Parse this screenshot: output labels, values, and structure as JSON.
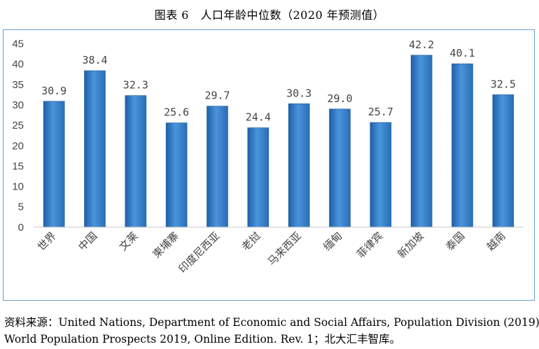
{
  "title": "图表 6　人口年龄中位数（2020 年预测值）",
  "source_line1": "资料来源：United Nations, Department of Economic and Social Affairs, Population Division (2019).",
  "source_line2": "World Population Prospects 2019, Online Edition. Rev. 1；北大汇丰智库。",
  "chart_data": {
    "type": "bar",
    "title": "图表 6　人口年龄中位数（2020 年预测值）",
    "xlabel": "",
    "ylabel": "",
    "categories": [
      "世界",
      "中国",
      "文莱",
      "柬埔寨",
      "印度尼西亚",
      "老挝",
      "马来西亚",
      "缅甸",
      "菲律宾",
      "新加坡",
      "泰国",
      "越南"
    ],
    "values": [
      30.9,
      38.4,
      32.3,
      25.6,
      29.7,
      24.4,
      30.3,
      29.0,
      25.7,
      42.2,
      40.1,
      32.5
    ],
    "value_labels": [
      "30.9",
      "38.4",
      "32.3",
      "25.6",
      "29.7",
      "24.4",
      "30.3",
      "29.0",
      "25.7",
      "42.2",
      "40.1",
      "32.5"
    ],
    "ylim": [
      0,
      45
    ],
    "yticks": [
      0,
      5,
      10,
      15,
      20,
      25,
      30,
      35,
      40,
      45
    ],
    "grid": false,
    "legend": "none",
    "bar_color": "#3c84cc"
  }
}
